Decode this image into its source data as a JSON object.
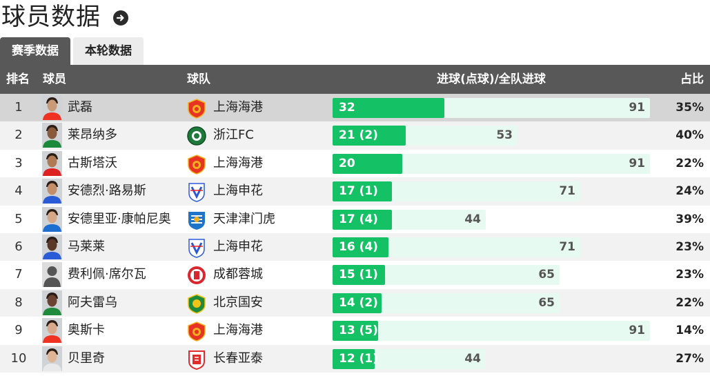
{
  "header": {
    "title": "球员数据",
    "more_icon": "arrow-right-circle-icon"
  },
  "tabs": [
    {
      "label": "赛季数据",
      "active": true
    },
    {
      "label": "本轮数据",
      "active": false
    }
  ],
  "table": {
    "columns": {
      "rank": "排名",
      "player": "球员",
      "team": "球队",
      "goals": "进球(点球)/全队进球",
      "pct": "占比"
    },
    "colors": {
      "goals_bar": "#14c164",
      "total_bar": "#e7faf1",
      "header_bg": "#585858"
    },
    "rows": [
      {
        "rank": "1",
        "player": "武磊",
        "team": "上海海港",
        "team_logo": "shanghai-port-logo",
        "goals": 32,
        "goals_label": "32",
        "team_total": 91,
        "team_total_label": "91",
        "pct": "35%"
      },
      {
        "rank": "2",
        "player": "莱昂纳多",
        "team": "浙江FC",
        "team_logo": "zhejiang-fc-logo",
        "goals": 21,
        "goals_label": "21 (2)",
        "team_total": 53,
        "team_total_label": "53",
        "pct": "40%"
      },
      {
        "rank": "3",
        "player": "古斯塔沃",
        "team": "上海海港",
        "team_logo": "shanghai-port-logo",
        "goals": 20,
        "goals_label": "20",
        "team_total": 91,
        "team_total_label": "91",
        "pct": "22%"
      },
      {
        "rank": "4",
        "player": "安德烈·路易斯",
        "team": "上海申花",
        "team_logo": "shanghai-shenhua-logo",
        "goals": 17,
        "goals_label": "17 (1)",
        "team_total": 71,
        "team_total_label": "71",
        "pct": "24%"
      },
      {
        "rank": "5",
        "player": "安德里亚·康帕尼奥",
        "team": "天津津门虎",
        "team_logo": "tianjin-tiger-logo",
        "goals": 17,
        "goals_label": "17 (4)",
        "team_total": 44,
        "team_total_label": "44",
        "pct": "39%"
      },
      {
        "rank": "6",
        "player": "马莱莱",
        "team": "上海申花",
        "team_logo": "shanghai-shenhua-logo",
        "goals": 16,
        "goals_label": "16 (4)",
        "team_total": 71,
        "team_total_label": "71",
        "pct": "23%"
      },
      {
        "rank": "7",
        "player": "费利佩·席尔瓦",
        "team": "成都蓉城",
        "team_logo": "chengdu-rongcheng-logo",
        "goals": 15,
        "goals_label": "15 (1)",
        "team_total": 65,
        "team_total_label": "65",
        "pct": "23%"
      },
      {
        "rank": "8",
        "player": "阿夫雷乌",
        "team": "北京国安",
        "team_logo": "beijing-guoan-logo",
        "goals": 14,
        "goals_label": "14 (2)",
        "team_total": 65,
        "team_total_label": "65",
        "pct": "22%"
      },
      {
        "rank": "9",
        "player": "奥斯卡",
        "team": "上海海港",
        "team_logo": "shanghai-port-logo",
        "goals": 13,
        "goals_label": "13 (5)",
        "team_total": 91,
        "team_total_label": "91",
        "pct": "14%"
      },
      {
        "rank": "10",
        "player": "贝里奇",
        "team": "长春亚泰",
        "team_logo": "changchun-yatai-logo",
        "goals": 12,
        "goals_label": "12 (1)",
        "team_total": 44,
        "team_total_label": "44",
        "pct": "27%"
      }
    ]
  }
}
